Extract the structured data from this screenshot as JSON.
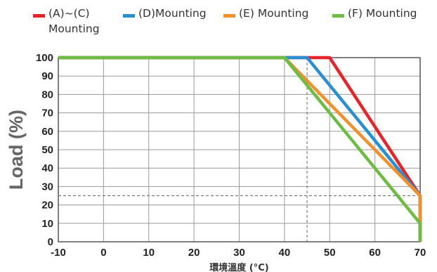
{
  "chart_data": {
    "type": "line",
    "title": "",
    "xlabel": "環境溫度 (°C)",
    "ylabel": "Load (%)",
    "xlim": [
      -10,
      70
    ],
    "ylim": [
      0,
      100
    ],
    "xticks": [
      -10,
      0,
      10,
      20,
      30,
      40,
      50,
      60,
      70
    ],
    "yticks": [
      0,
      10,
      20,
      30,
      40,
      50,
      60,
      70,
      80,
      90,
      100
    ],
    "grid": true,
    "legend_position": "top",
    "reference_lines": {
      "x": 45,
      "y": 25,
      "style": "dashed"
    },
    "series": [
      {
        "name": "(A)~(C) Mounting",
        "color": "#e5252a",
        "points": [
          [
            -10,
            100
          ],
          [
            50,
            100
          ],
          [
            70,
            25
          ],
          [
            70,
            0
          ]
        ]
      },
      {
        "name": "(D)Mounting",
        "color": "#2a8fd0",
        "points": [
          [
            -10,
            100
          ],
          [
            45,
            100
          ],
          [
            70,
            25
          ],
          [
            70,
            0
          ]
        ]
      },
      {
        "name": "(E) Mounting",
        "color": "#f0912e",
        "points": [
          [
            -10,
            100
          ],
          [
            40,
            100
          ],
          [
            70,
            25
          ],
          [
            70,
            0
          ]
        ]
      },
      {
        "name": "(F) Mounting",
        "color": "#6cbc45",
        "points": [
          [
            -10,
            100
          ],
          [
            40,
            100
          ],
          [
            70,
            10
          ],
          [
            70,
            0
          ]
        ]
      }
    ]
  }
}
